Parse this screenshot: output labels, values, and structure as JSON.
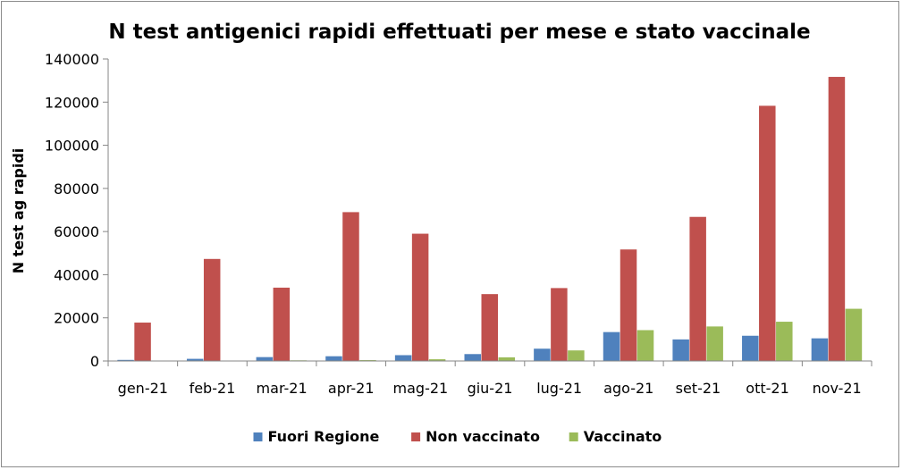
{
  "chart_data": {
    "type": "bar",
    "title": "N test antigenici rapidi effettuati per mese e stato vaccinale",
    "xlabel": "",
    "ylabel": "N test ag rapidi",
    "ylim": [
      0,
      140000
    ],
    "yticks": [
      "0",
      "20000",
      "40000",
      "60000",
      "80000",
      "100000",
      "120000",
      "140000"
    ],
    "grid": false,
    "legend": "bottom",
    "categories": [
      "gen-21",
      "feb-21",
      "mar-21",
      "apr-21",
      "mag-21",
      "giu-21",
      "lug-21",
      "ago-21",
      "set-21",
      "ott-21",
      "nov-21"
    ],
    "series": [
      {
        "name": "Fuori Regione",
        "color": "#4f81bd",
        "values": [
          500,
          1000,
          1800,
          2200,
          2700,
          3200,
          5700,
          13400,
          10000,
          11700,
          10500
        ]
      },
      {
        "name": "Non vaccinato",
        "color": "#c0504d",
        "values": [
          17800,
          47300,
          34000,
          69000,
          59000,
          31000,
          33800,
          51700,
          66800,
          118300,
          131700
        ]
      },
      {
        "name": "Vaccinato",
        "color": "#9bbb59",
        "values": [
          0,
          200,
          300,
          400,
          800,
          1700,
          4900,
          14300,
          16000,
          18200,
          24200
        ]
      }
    ]
  }
}
